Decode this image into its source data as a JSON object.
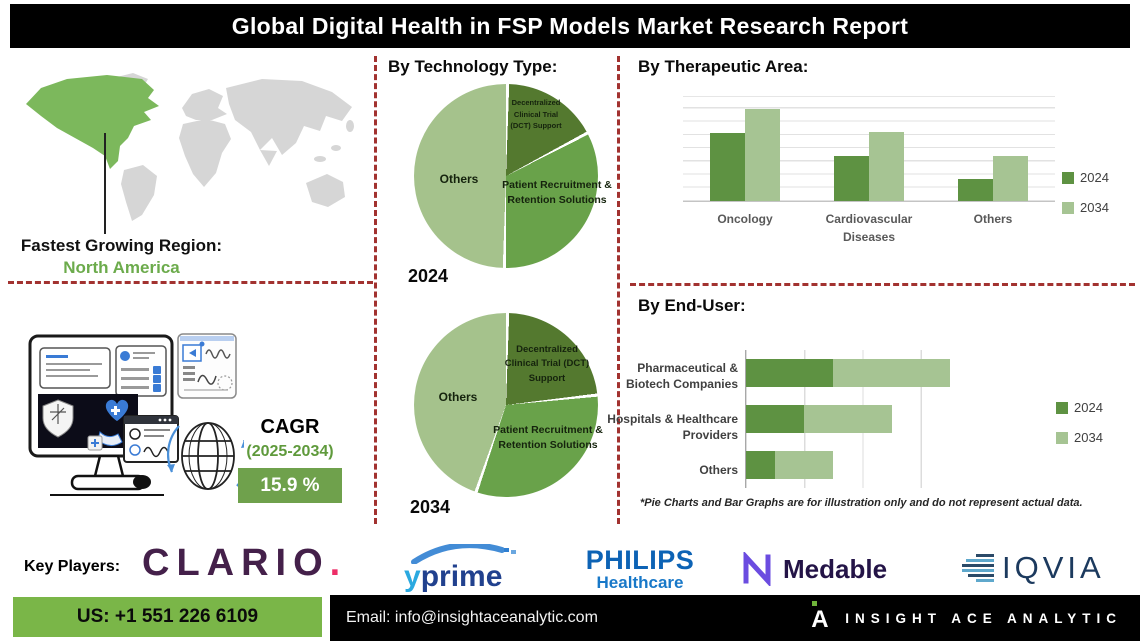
{
  "title": "Global Digital Health in FSP Models Market Research Report",
  "colors": {
    "green_dark": "#5e9242",
    "green_light": "#a6c493",
    "pie_dark": "#54792f",
    "pie_medium": "#69a24a",
    "pie_light": "#a5c28c",
    "dash_red": "#a23230",
    "map_green": "#7cb85c",
    "map_gray": "#d6d6d6",
    "cagr_box_green": "#6fa14c",
    "phone_box_green": "#7ab648"
  },
  "map_section": {
    "label": "Fastest Growing Region:",
    "region": "North America",
    "region_color": "#6cab4c"
  },
  "cagr": {
    "label": "CAGR",
    "period": "(2025-2034)",
    "period_color": "#5f9a3c",
    "value": "15.9 %"
  },
  "chart_data": [
    {
      "id": "technology_type_2024",
      "type": "pie",
      "section_title": "By Technology Type:",
      "year_label": "2024",
      "slices": [
        {
          "label": "Decentralized Clinical Trial (DCT) Support",
          "value": 17,
          "color": "#54792f"
        },
        {
          "label": "Patient Recruitment & Retention Solutions",
          "value": 33,
          "color": "#69a24a"
        },
        {
          "label": "Others",
          "value": 50,
          "color": "#a5c28c"
        }
      ]
    },
    {
      "id": "technology_type_2034",
      "type": "pie",
      "year_label": "2034",
      "slices": [
        {
          "label": "Decentralized Clinical Trial (DCT) Support",
          "value": 23,
          "color": "#54792f"
        },
        {
          "label": "Patient Recruitment & Retention Solutions",
          "value": 32,
          "color": "#69a24a"
        },
        {
          "label": "Others",
          "value": 45,
          "color": "#a5c28c"
        }
      ]
    },
    {
      "id": "therapeutic_area",
      "type": "bar",
      "section_title": "By Therapeutic Area:",
      "categories": [
        "Oncology",
        "Cardiovascular Diseases",
        "Others"
      ],
      "series": [
        {
          "name": "2024",
          "color": "#5e9242",
          "values": [
            65,
            43,
            21
          ]
        },
        {
          "name": "2034",
          "color": "#a6c493",
          "values": [
            88,
            66,
            43
          ]
        }
      ],
      "ylim": [
        0,
        100
      ],
      "grid": true,
      "legend_position": "right"
    },
    {
      "id": "end_user",
      "type": "bar-horizontal-stacked",
      "section_title": "By End-User:",
      "categories": [
        "Pharmaceutical & Biotech Companies",
        "Hospitals & Healthcare Providers",
        "Others"
      ],
      "series": [
        {
          "name": "2024",
          "color": "#5e9242",
          "values": [
            1.5,
            1.0,
            0.5
          ]
        },
        {
          "name": "2034",
          "color": "#a6c493",
          "values": [
            2.0,
            1.5,
            1.0
          ]
        }
      ],
      "xlim": [
        0,
        4
      ],
      "grid": true,
      "legend_position": "right"
    }
  ],
  "footnote": "*Pie Charts and Bar Graphs are for illustration only and do not represent actual data.",
  "key_players": {
    "label": "Key Players:",
    "clario": {
      "name": "CLARIO",
      "dot": "."
    },
    "yprime": {
      "part1": "y",
      "part2": "prime"
    },
    "philips": {
      "line1": "PHILIPS",
      "line2": "Healthcare"
    },
    "medable": {
      "name": "Medable"
    },
    "iqvia": {
      "name": "IQVIA"
    }
  },
  "footer": {
    "phone": "US: +1 551 226 6109",
    "email": "Email: info@insightaceanalytic.com",
    "brand": "INSIGHT ACE ANALYTIC",
    "brand_mark": "A"
  }
}
